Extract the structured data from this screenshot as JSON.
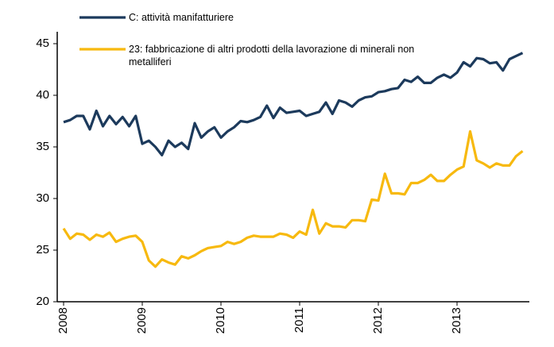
{
  "chart_data": {
    "type": "line",
    "categories": [
      "2008",
      null,
      null,
      null,
      null,
      null,
      null,
      null,
      null,
      null,
      null,
      null,
      "2009",
      null,
      null,
      null,
      null,
      null,
      null,
      null,
      null,
      null,
      null,
      null,
      "2010",
      null,
      null,
      null,
      null,
      null,
      null,
      null,
      null,
      null,
      null,
      null,
      "2011",
      null,
      null,
      null,
      null,
      null,
      null,
      null,
      null,
      null,
      null,
      null,
      "2012",
      null,
      null,
      null,
      null,
      null,
      null,
      null,
      null,
      null,
      null,
      null,
      "2013",
      null,
      null,
      null,
      null,
      null,
      null,
      null,
      null,
      null,
      null
    ],
    "series": [
      {
        "name": "C: attività manifatturiere",
        "color": "#1c3a5c",
        "values": [
          37.4,
          37.6,
          38.0,
          38.0,
          36.7,
          38.5,
          37.0,
          38.0,
          37.2,
          37.9,
          37.0,
          38.0,
          35.3,
          35.6,
          35.0,
          34.2,
          35.6,
          35.0,
          35.4,
          34.8,
          37.3,
          35.9,
          36.5,
          36.9,
          35.9,
          36.5,
          36.9,
          37.5,
          37.4,
          37.6,
          37.9,
          39.0,
          37.8,
          38.8,
          38.3,
          38.4,
          38.5,
          38.0,
          38.2,
          38.4,
          39.3,
          38.2,
          39.5,
          39.3,
          38.9,
          39.5,
          39.8,
          39.9,
          40.3,
          40.4,
          40.6,
          40.7,
          41.5,
          41.3,
          41.8,
          41.2,
          41.2,
          41.7,
          42.0,
          41.7,
          42.2,
          43.2,
          42.8,
          43.6,
          43.5,
          43.1,
          43.2,
          42.4,
          43.5,
          43.8,
          44.1
        ]
      },
      {
        "name": "23: fabbricazione di altri prodotti della lavorazione di minerali non metalliferi",
        "color": "#f7b90f",
        "values": [
          27.1,
          26.1,
          26.6,
          26.5,
          26.0,
          26.5,
          26.3,
          26.7,
          25.8,
          26.1,
          26.3,
          26.4,
          25.8,
          24.0,
          23.4,
          24.1,
          23.8,
          23.6,
          24.4,
          24.2,
          24.5,
          24.9,
          25.2,
          25.3,
          25.4,
          25.8,
          25.6,
          25.8,
          26.2,
          26.4,
          26.3,
          26.3,
          26.3,
          26.6,
          26.5,
          26.2,
          26.8,
          26.5,
          28.9,
          26.6,
          27.6,
          27.3,
          27.3,
          27.2,
          27.9,
          27.9,
          27.8,
          29.9,
          29.8,
          32.4,
          30.5,
          30.5,
          30.4,
          31.5,
          31.5,
          31.8,
          32.3,
          31.7,
          31.7,
          32.3,
          32.8,
          33.1,
          36.5,
          33.7,
          33.4,
          33.0,
          33.4,
          33.2,
          33.2,
          34.1,
          34.6
        ]
      }
    ],
    "ylim": [
      20,
      45
    ],
    "yticks": [
      20,
      25,
      30,
      35,
      40,
      45
    ],
    "grid": false,
    "legend": "top-left"
  }
}
